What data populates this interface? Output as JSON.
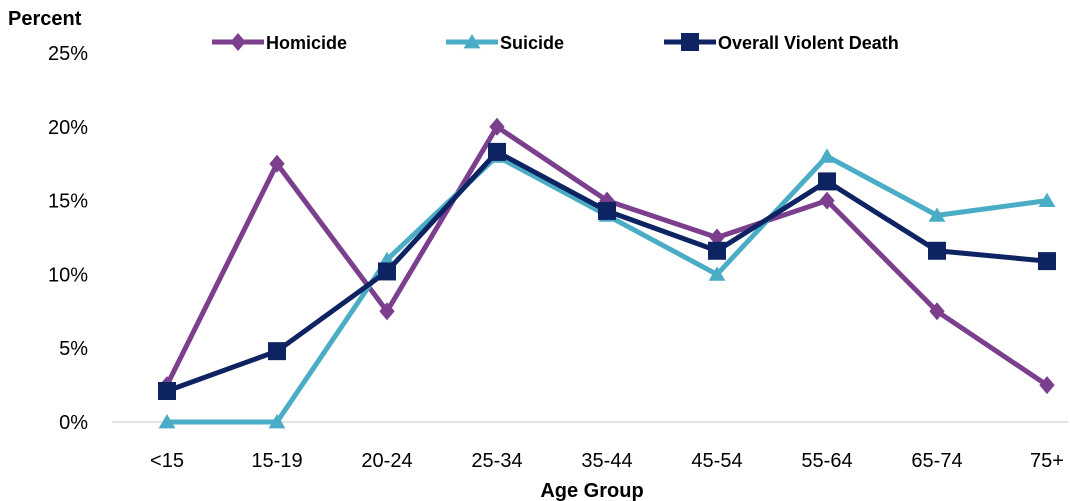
{
  "chart_data": {
    "type": "line",
    "ylabel": "Percent",
    "xlabel": "Age Group",
    "categories": [
      "<15",
      "15-19",
      "20-24",
      "25-34",
      "35-44",
      "45-54",
      "55-64",
      "65-74",
      "75+"
    ],
    "yticks": [
      "0%",
      "5%",
      "10%",
      "15%",
      "20%",
      "25%"
    ],
    "ylim": [
      0,
      25
    ],
    "grid": false,
    "legend_position": "top",
    "series": [
      {
        "name": "Homicide",
        "marker": "diamond",
        "color": "#7B3F8E",
        "values": [
          2.5,
          17.5,
          7.5,
          20,
          15,
          12.5,
          15,
          7.5,
          2.5
        ]
      },
      {
        "name": "Suicide",
        "marker": "triangle",
        "color": "#4BACC6",
        "values": [
          0,
          0,
          11,
          18,
          14,
          10,
          18,
          14,
          15
        ]
      },
      {
        "name": "Overall Violent Death",
        "marker": "square",
        "color": "#0E2361",
        "values": [
          2.1,
          4.8,
          10.2,
          18.3,
          14.3,
          11.6,
          16.3,
          11.6,
          10.9
        ]
      }
    ]
  }
}
